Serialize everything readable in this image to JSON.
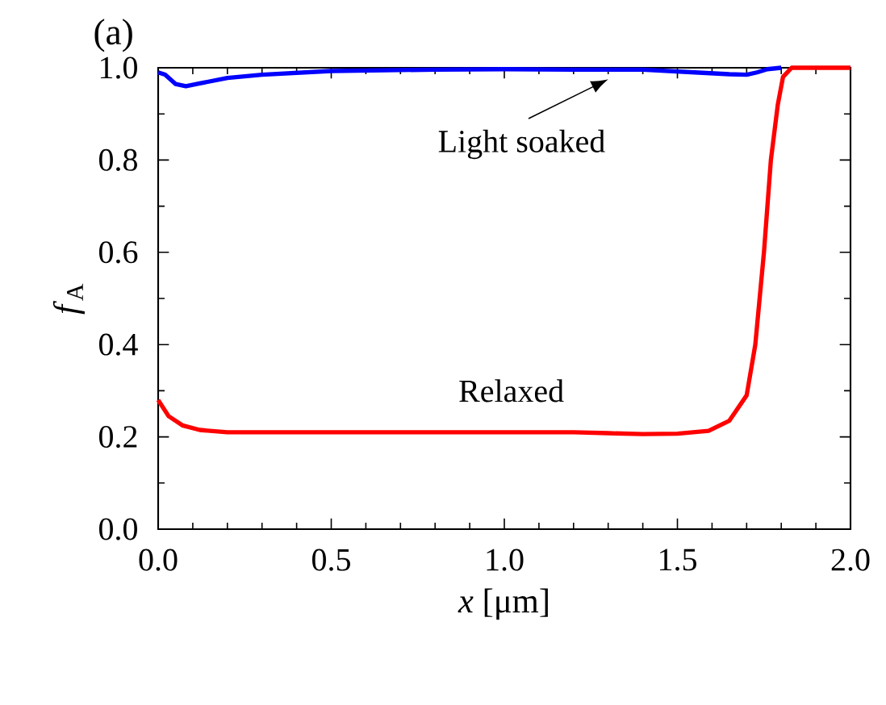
{
  "chart_data": {
    "type": "line",
    "xlabel": "*x* [μm]",
    "ylabel": "*f*$_{A}$",
    "annotations": [
      "(a)"
    ],
    "series": [
      {
        "name": "Light soaked",
        "color": "#0000ff",
        "x": [
          0,
          0.02,
          0.05,
          0.08,
          0.12,
          0.2,
          0.3,
          0.5,
          0.8,
          1.0,
          1.2,
          1.4,
          1.55,
          1.65,
          1.7,
          1.73,
          1.76,
          1.8
        ],
        "values": [
          0.99,
          0.985,
          0.965,
          0.96,
          0.966,
          0.978,
          0.985,
          0.993,
          0.996,
          0.997,
          0.996,
          0.996,
          0.99,
          0.986,
          0.985,
          0.99,
          0.997,
          1.0
        ]
      },
      {
        "name": "Relaxed",
        "color": "#ff0000",
        "x": [
          0,
          0.03,
          0.07,
          0.12,
          0.2,
          0.4,
          0.8,
          1.2,
          1.3,
          1.4,
          1.5,
          1.59,
          1.65,
          1.7,
          1.725,
          1.75,
          1.77,
          1.79,
          1.805,
          1.83,
          2.0
        ],
        "values": [
          0.28,
          0.245,
          0.225,
          0.215,
          0.21,
          0.21,
          0.21,
          0.21,
          0.208,
          0.206,
          0.207,
          0.213,
          0.235,
          0.29,
          0.4,
          0.6,
          0.8,
          0.92,
          0.98,
          1.0,
          1.0
        ]
      }
    ],
    "xlim": [
      0,
      2
    ],
    "ylim": [
      0,
      1
    ],
    "xticks": [
      {
        "value": 0,
        "label": "0.0"
      },
      {
        "value": 0.5,
        "label": "0.5"
      },
      {
        "value": 1,
        "label": "1.0"
      },
      {
        "value": 1.5,
        "label": "1.5"
      },
      {
        "value": 2,
        "label": "2.0"
      }
    ],
    "yticks": [
      {
        "value": 0,
        "label": "0.0"
      },
      {
        "value": 0.2,
        "label": "0.2"
      },
      {
        "value": 0.4,
        "label": "0.4"
      },
      {
        "value": 0.6,
        "label": "0.6"
      },
      {
        "value": 0.8,
        "label": "0.8"
      },
      {
        "value": 1,
        "label": "1.0"
      }
    ],
    "grid": false,
    "legend": false,
    "marker": "none",
    "line_style": "solid"
  }
}
